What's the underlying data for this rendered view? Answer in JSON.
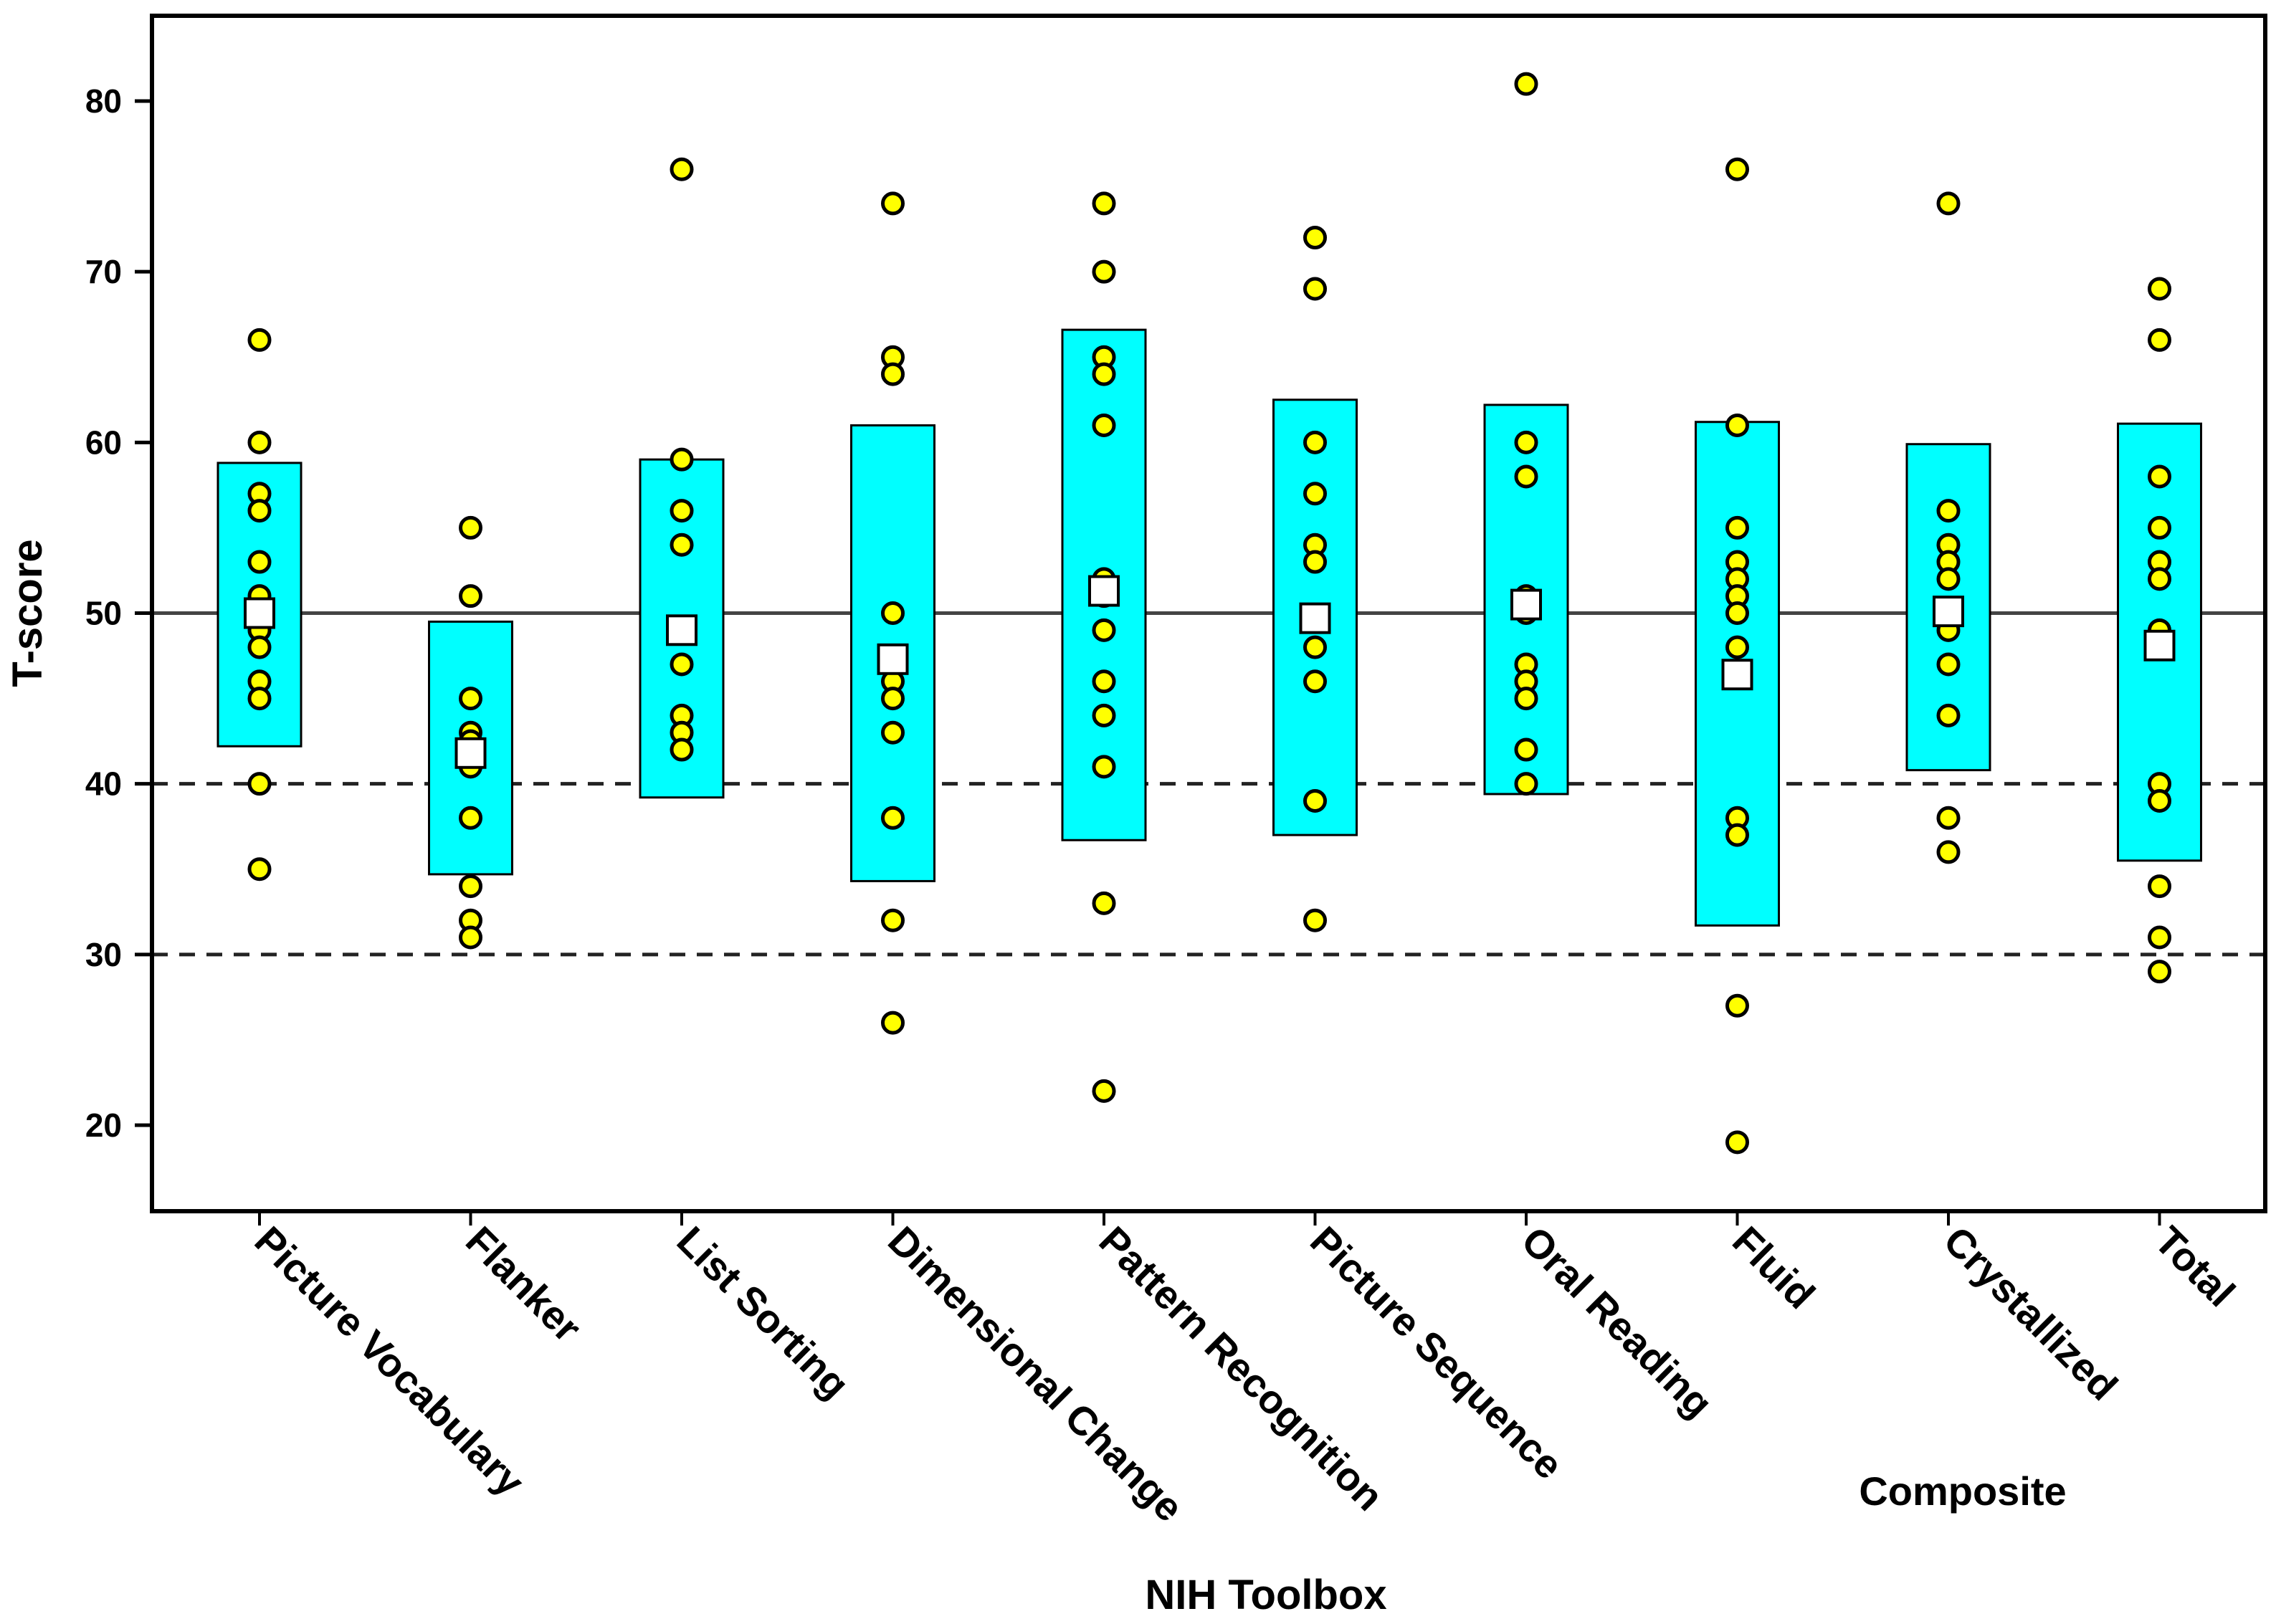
{
  "chart_data": {
    "type": "scatter",
    "title": "",
    "xlabel": "NIH Toolbox",
    "ylabel": "T-score",
    "composite_label": "Composite",
    "ylim": [
      15,
      85
    ],
    "yticks": [
      20,
      30,
      40,
      50,
      60,
      70,
      80
    ],
    "reference_lines": [
      {
        "value": 50,
        "style": "solid"
      },
      {
        "value": 40,
        "style": "dashed"
      },
      {
        "value": 30,
        "style": "dashed"
      }
    ],
    "colors": {
      "box": "#00ffff",
      "point": "#ffff00",
      "mean": "#ffffff",
      "outline": "#000000"
    },
    "categories": [
      {
        "name": "Picture Vocabulary",
        "box": [
          42.2,
          58.8
        ],
        "mean": 50.0,
        "points": [
          66,
          60,
          57,
          56,
          53,
          51,
          50,
          49,
          48,
          46,
          45,
          40,
          35
        ]
      },
      {
        "name": "Flanker",
        "box": [
          34.7,
          49.5
        ],
        "mean": 41.8,
        "points": [
          55,
          51,
          45,
          43,
          42.5,
          42,
          41.5,
          41,
          38,
          34,
          32,
          31
        ]
      },
      {
        "name": "List Sorting",
        "box": [
          39.2,
          59.0
        ],
        "mean": 49.0,
        "points": [
          76,
          59,
          56,
          54,
          47,
          44,
          43,
          42
        ]
      },
      {
        "name": "Dimensional Change",
        "box": [
          34.3,
          61.0
        ],
        "mean": 47.3,
        "points": [
          74,
          65,
          64,
          50,
          47,
          46,
          45,
          43,
          38,
          32,
          26
        ]
      },
      {
        "name": "Pattern Recognition",
        "box": [
          36.7,
          66.6
        ],
        "mean": 51.3,
        "points": [
          74,
          70,
          65,
          64,
          61,
          52,
          51,
          49,
          46,
          44,
          41,
          33,
          22
        ]
      },
      {
        "name": "Picture Sequence",
        "box": [
          37.0,
          62.5
        ],
        "mean": 49.7,
        "points": [
          72,
          69,
          60,
          57,
          54,
          53,
          48,
          46,
          39,
          32
        ]
      },
      {
        "name": "Oral Reading",
        "box": [
          39.4,
          62.2
        ],
        "mean": 50.5,
        "points": [
          81,
          60,
          58,
          51,
          50,
          47,
          46,
          45,
          42,
          40
        ]
      },
      {
        "name": "Fluid",
        "box": [
          31.7,
          61.2
        ],
        "mean": 46.4,
        "points": [
          76,
          61,
          55,
          53,
          52,
          51,
          50,
          48,
          38,
          37,
          27,
          19
        ]
      },
      {
        "name": "Crystallized",
        "box": [
          40.8,
          59.9
        ],
        "mean": 50.1,
        "points": [
          74,
          56,
          54,
          53,
          52,
          49,
          47,
          44,
          38,
          36
        ]
      },
      {
        "name": "Total",
        "box": [
          35.5,
          61.1
        ],
        "mean": 48.1,
        "points": [
          69,
          66,
          58,
          55,
          53,
          52,
          49,
          40,
          39,
          34,
          31,
          29
        ]
      }
    ]
  }
}
